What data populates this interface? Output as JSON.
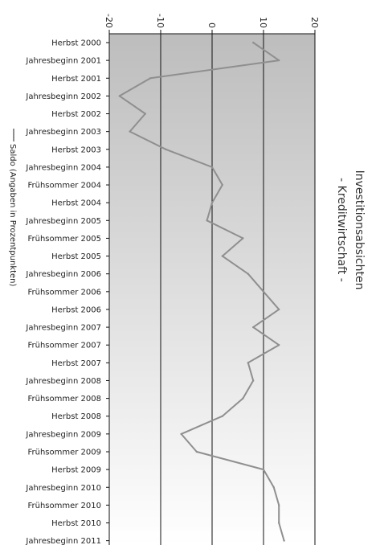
{
  "chart_data": {
    "type": "line",
    "title": "Investitionsabsichten",
    "subtitle": "- Kreditwirtschaft -",
    "legend": "Saldo (Angaben in Prozentpunkten)",
    "legend_position": "left",
    "orientation": "rotated-90-clockwise",
    "axis_ticks": [
      -20,
      -10,
      0,
      10,
      20
    ],
    "axis_tick_labels": [
      "-20",
      "-10",
      "0",
      "10",
      "20"
    ],
    "axis_range": [
      -20,
      20
    ],
    "grid": true,
    "colors": {
      "line": "#8f8f8f",
      "gradient_top": "#bdbdbd",
      "gradient_bottom": "#ffffff",
      "grid": "#111111"
    },
    "categories": [
      "Herbst 2000",
      "Jahresbeginn 2001",
      "Herbst 2001",
      "Jahresbeginn 2002",
      "Herbst 2002",
      "Jahresbeginn 2003",
      "Herbst 2003",
      "Jahresbeginn 2004",
      "Frühsommer 2004",
      "Herbst 2004",
      "Jahresbeginn 2005",
      "Frühsommer 2005",
      "Herbst 2005",
      "Jahresbeginn 2006",
      "Frühsommer 2006",
      "Herbst 2006",
      "Jahresbeginn 2007",
      "Frühsommer 2007",
      "Herbst 2007",
      "Jahresbeginn 2008",
      "Frühsommer 2008",
      "Herbst 2008",
      "Jahresbeginn 2009",
      "Frühsommer 2009",
      "Herbst 2009",
      "Jahresbeginn 2010",
      "Frühsommer 2010",
      "Herbst 2010",
      "Jahresbeginn 2011"
    ],
    "series": [
      {
        "name": "Saldo (Angaben in Prozentpunkten)",
        "values": [
          8,
          13,
          -12,
          -18,
          -13,
          -16,
          -9,
          0,
          2,
          0,
          -1,
          6,
          2,
          7,
          10,
          13,
          8,
          13,
          7,
          8,
          6,
          2,
          -6,
          -3,
          10,
          12,
          13,
          13,
          14
        ]
      }
    ]
  }
}
